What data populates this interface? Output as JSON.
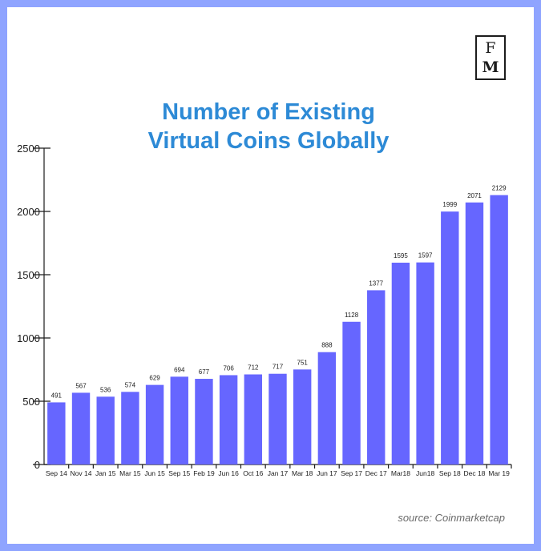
{
  "logo": {
    "line1": "F",
    "line2": "M"
  },
  "source": "source: Coinmarketcap",
  "chart_data": {
    "type": "bar",
    "title_lines": [
      "Number of Existing",
      "Virtual Coins Globally"
    ],
    "xlabel": "",
    "ylabel": "",
    "ylim": [
      0,
      2500
    ],
    "yticks": [
      0,
      500,
      1000,
      1500,
      2000,
      2500
    ],
    "categories": [
      "Sep 14",
      "Nov 14",
      "Jan 15",
      "Mar 15",
      "Jun 15",
      "Sep 15",
      "Feb 19",
      "Jun 16",
      "Oct 16",
      "Jan 17",
      "Mar 18",
      "Jun 17",
      "Sep 17",
      "Dec 17",
      "Mar18",
      "Jun18",
      "Sep 18",
      "Dec 18",
      "Mar 19"
    ],
    "values": [
      491,
      567,
      536,
      574,
      629,
      694,
      677,
      706,
      712,
      717,
      751,
      888,
      1128,
      1377,
      1595,
      1597,
      1999,
      2071,
      2129
    ],
    "colors": {
      "bar": "#6666ff",
      "title": "#2d8ad6",
      "frame": "#8fa4ff"
    }
  }
}
